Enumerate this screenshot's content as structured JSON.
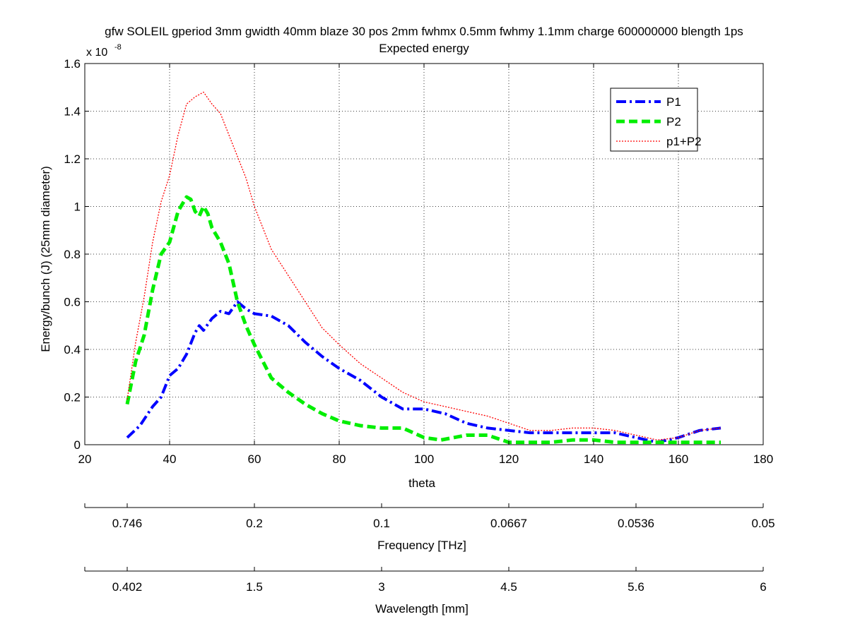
{
  "chart_data": {
    "type": "line",
    "title": "gfw SOLEIL gperiod 3mm gwidth 40mm blaze 30 pos 2mm fwhmx 0.5mm fwhmy 1.1mm charge 600000000 blength 1ps",
    "subtitle": "Expected energy",
    "xlabel": "theta",
    "ylabel": "Energy/bunch (J) (25mm diameter)",
    "y_exponent_label": "x 10",
    "y_exponent_power": "-8",
    "xlim": [
      20,
      180
    ],
    "ylim": [
      0,
      1.6
    ],
    "grid": true,
    "legend_position": "top-right",
    "x_ticks": [
      "20",
      "40",
      "60",
      "80",
      "100",
      "120",
      "140",
      "160",
      "180"
    ],
    "y_ticks": [
      "0",
      "0.2",
      "0.4",
      "0.6",
      "0.8",
      "1",
      "1.2",
      "1.4",
      "1.6"
    ],
    "series": [
      {
        "name": "P1",
        "color": "#0000ff",
        "style": "dashdot",
        "x": [
          30,
          33,
          36,
          38,
          40,
          42,
          44,
          46,
          47,
          48,
          50,
          52,
          54,
          56,
          58,
          60,
          64,
          68,
          72,
          76,
          80,
          85,
          90,
          95,
          100,
          105,
          110,
          115,
          120,
          125,
          130,
          135,
          140,
          145,
          150,
          155,
          160,
          165,
          170
        ],
        "y": [
          0.03,
          0.08,
          0.16,
          0.2,
          0.29,
          0.32,
          0.38,
          0.47,
          0.5,
          0.48,
          0.53,
          0.56,
          0.55,
          0.6,
          0.57,
          0.55,
          0.54,
          0.5,
          0.43,
          0.37,
          0.32,
          0.27,
          0.2,
          0.15,
          0.15,
          0.13,
          0.09,
          0.07,
          0.06,
          0.05,
          0.05,
          0.05,
          0.05,
          0.05,
          0.03,
          0.01,
          0.03,
          0.06,
          0.07
        ]
      },
      {
        "name": "P2",
        "color": "#00ee00",
        "style": "dashed",
        "x": [
          30,
          32,
          34,
          36,
          38,
          40,
          42,
          44,
          45,
          46,
          47,
          48,
          49,
          50,
          52,
          54,
          56,
          58,
          60,
          64,
          68,
          72,
          76,
          80,
          85,
          90,
          95,
          100,
          104,
          110,
          115,
          120,
          125,
          130,
          135,
          140,
          145,
          150,
          155,
          160,
          165,
          170
        ],
        "y": [
          0.17,
          0.35,
          0.46,
          0.65,
          0.8,
          0.85,
          0.98,
          1.04,
          1.03,
          0.98,
          0.96,
          1.0,
          0.97,
          0.91,
          0.85,
          0.76,
          0.6,
          0.5,
          0.42,
          0.28,
          0.22,
          0.17,
          0.13,
          0.1,
          0.08,
          0.07,
          0.07,
          0.03,
          0.02,
          0.04,
          0.04,
          0.01,
          0.01,
          0.01,
          0.02,
          0.02,
          0.01,
          0.01,
          0.01,
          0.01,
          0.01,
          0.01
        ]
      },
      {
        "name": "p1+P2",
        "color": "#ff0000",
        "style": "dotted",
        "x": [
          30,
          32,
          34,
          36,
          38,
          40,
          42,
          44,
          46,
          48,
          50,
          52,
          54,
          56,
          58,
          60,
          64,
          68,
          72,
          76,
          80,
          85,
          90,
          95,
          100,
          105,
          110,
          115,
          120,
          125,
          130,
          135,
          140,
          145,
          150,
          155,
          160,
          165,
          170
        ],
        "y": [
          0.19,
          0.43,
          0.62,
          0.85,
          1.02,
          1.13,
          1.3,
          1.43,
          1.46,
          1.48,
          1.43,
          1.39,
          1.3,
          1.21,
          1.12,
          1.0,
          0.82,
          0.71,
          0.6,
          0.49,
          0.42,
          0.34,
          0.28,
          0.22,
          0.18,
          0.16,
          0.14,
          0.12,
          0.09,
          0.06,
          0.06,
          0.07,
          0.07,
          0.06,
          0.04,
          0.02,
          0.03,
          0.06,
          0.07
        ]
      }
    ],
    "secondary_axes": [
      {
        "label": "Frequency [THz]",
        "tick_labels": [
          "0.746",
          "0.2",
          "0.1",
          "0.0667",
          "0.0536",
          "0.05"
        ],
        "tick_positions_theta": [
          30,
          60,
          90,
          120,
          150,
          180
        ]
      },
      {
        "label": "Wavelength [mm]",
        "tick_labels": [
          "0.402",
          "1.5",
          "3",
          "4.5",
          "5.6",
          "6"
        ],
        "tick_positions_theta": [
          30,
          60,
          90,
          120,
          150,
          180
        ]
      }
    ]
  }
}
